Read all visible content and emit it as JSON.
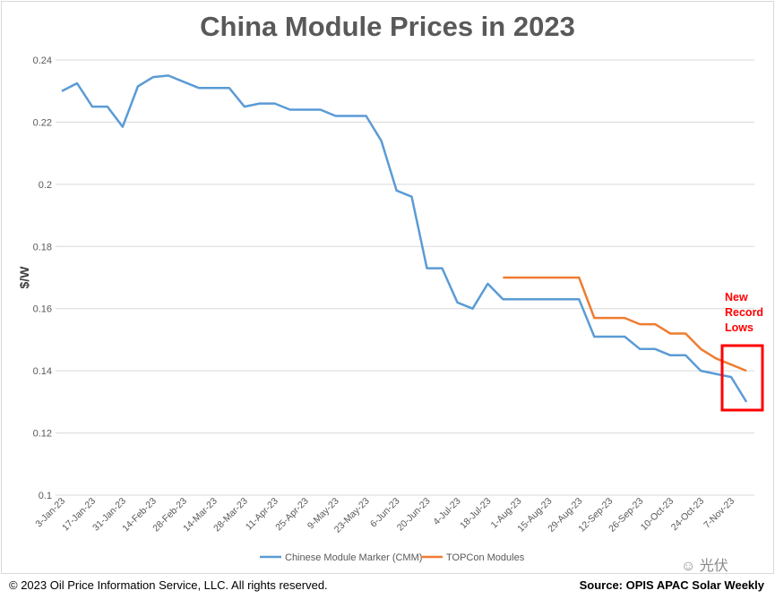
{
  "chart_data": {
    "type": "line",
    "title": "China Module Prices in 2023",
    "ylabel": "$/W",
    "xlabel": "",
    "ylim": [
      0.1,
      0.24
    ],
    "yticks": [
      0.24,
      0.22,
      0.2,
      0.18,
      0.16,
      0.14,
      0.12,
      0.1
    ],
    "ytick_labels": [
      "0.24",
      "0.22",
      "0.2",
      "0.18",
      "0.16",
      "0.14",
      "0.12",
      "0.1"
    ],
    "grid": true,
    "legend": "bottom",
    "x": [
      "3-Jan-23",
      "10-Jan-23",
      "17-Jan-23",
      "24-Jan-23",
      "31-Jan-23",
      "7-Feb-23",
      "14-Feb-23",
      "21-Feb-23",
      "28-Feb-23",
      "7-Mar-23",
      "14-Mar-23",
      "21-Mar-23",
      "28-Mar-23",
      "4-Apr-23",
      "11-Apr-23",
      "18-Apr-23",
      "25-Apr-23",
      "2-May-23",
      "9-May-23",
      "16-May-23",
      "23-May-23",
      "30-May-23",
      "6-Jun-23",
      "13-Jun-23",
      "20-Jun-23",
      "27-Jun-23",
      "4-Jul-23",
      "11-Jul-23",
      "18-Jul-23",
      "25-Jul-23",
      "1-Aug-23",
      "8-Aug-23",
      "15-Aug-23",
      "22-Aug-23",
      "29-Aug-23",
      "5-Sep-23",
      "12-Sep-23",
      "19-Sep-23",
      "26-Sep-23",
      "3-Oct-23",
      "10-Oct-23",
      "17-Oct-23",
      "24-Oct-23",
      "31-Oct-23",
      "7-Nov-23",
      "14-Nov-23"
    ],
    "xtick_labels": [
      "3-Jan-23",
      "17-Jan-23",
      "31-Jan-23",
      "14-Feb-23",
      "28-Feb-23",
      "14-Mar-23",
      "28-Mar-23",
      "11-Apr-23",
      "25-Apr-23",
      "9-May-23",
      "23-May-23",
      "6-Jun-23",
      "20-Jun-23",
      "4-Jul-23",
      "18-Jul-23",
      "1-Aug-23",
      "15-Aug-23",
      "29-Aug-23",
      "12-Sep-23",
      "26-Sep-23",
      "10-Oct-23",
      "24-Oct-23",
      "7-Nov-23"
    ],
    "series": [
      {
        "name": "Chinese Module Marker (CMM)",
        "color": "#5b9bd5",
        "values": [
          0.23,
          0.2325,
          0.225,
          0.225,
          0.2185,
          0.2315,
          0.2345,
          0.235,
          0.233,
          0.231,
          0.231,
          0.231,
          0.225,
          0.226,
          0.226,
          0.224,
          0.224,
          0.224,
          0.222,
          0.222,
          0.222,
          0.214,
          0.198,
          0.196,
          0.173,
          0.173,
          0.162,
          0.16,
          0.168,
          0.163,
          0.163,
          0.163,
          0.163,
          0.163,
          0.163,
          0.151,
          0.151,
          0.151,
          0.147,
          0.147,
          0.145,
          0.145,
          0.14,
          0.139,
          0.138,
          0.13
        ]
      },
      {
        "name": "TOPCon Modules",
        "color": "#ed7d31",
        "values": [
          null,
          null,
          null,
          null,
          null,
          null,
          null,
          null,
          null,
          null,
          null,
          null,
          null,
          null,
          null,
          null,
          null,
          null,
          null,
          null,
          null,
          null,
          null,
          null,
          null,
          null,
          null,
          null,
          null,
          0.17,
          0.17,
          0.17,
          0.17,
          0.17,
          0.17,
          0.157,
          0.157,
          0.157,
          0.155,
          0.155,
          0.152,
          0.152,
          0.147,
          0.144,
          0.142,
          0.14
        ]
      }
    ],
    "annotations": [
      {
        "text": [
          "New",
          "Record",
          "Lows"
        ],
        "color": "#ff0000"
      }
    ]
  },
  "footer": {
    "copyright": "© 2023  Oil Price Information Service, LLC. All rights reserved.",
    "source": "Source: OPIS APAC Solar Weekly",
    "watermark": "光伏"
  }
}
